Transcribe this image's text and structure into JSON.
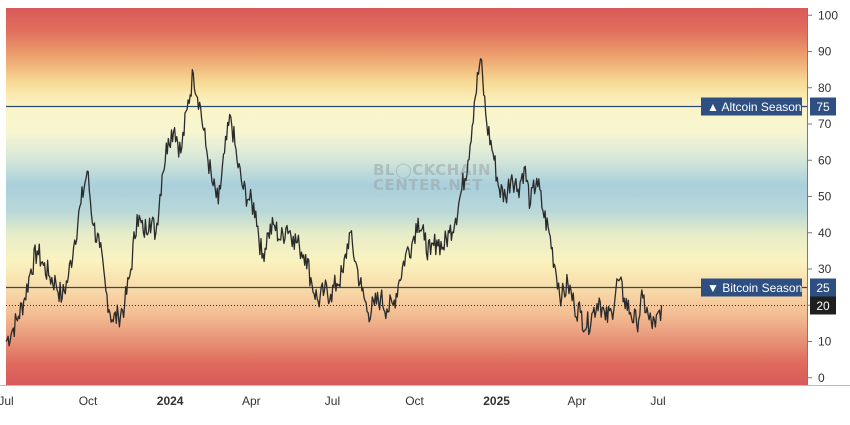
{
  "chart_data": {
    "type": "line",
    "title": "",
    "xlabel": "",
    "ylabel": "",
    "ylim": [
      -2,
      102
    ],
    "yticks": [
      0,
      10,
      20,
      30,
      40,
      50,
      60,
      70,
      80,
      90,
      100
    ],
    "x_ticks": [
      {
        "label": "Jul",
        "date": "2023-07-01",
        "bold": false
      },
      {
        "label": "Oct",
        "date": "2023-10-01",
        "bold": false
      },
      {
        "label": "2024",
        "date": "2024-01-01",
        "bold": true
      },
      {
        "label": "Apr",
        "date": "2024-04-01",
        "bold": false
      },
      {
        "label": "Jul",
        "date": "2024-07-01",
        "bold": false
      },
      {
        "label": "Oct",
        "date": "2024-10-01",
        "bold": false
      },
      {
        "label": "2025",
        "date": "2025-01-01",
        "bold": true
      },
      {
        "label": "Apr",
        "date": "2025-04-01",
        "bold": false
      },
      {
        "label": "Jul",
        "date": "2025-07-01",
        "bold": false
      }
    ],
    "x_range": [
      "2023-07-01",
      "2025-12-15"
    ],
    "thresholds": [
      {
        "label": "Altcoin Season",
        "value": 75,
        "value_label": "75",
        "marker": "▲"
      },
      {
        "label": "Bitcoin Season",
        "value": 25,
        "value_label": "25",
        "marker": "▼"
      }
    ],
    "last_value": {
      "value": 20,
      "label": "20"
    },
    "watermark": [
      "BL◯CKCHAIN",
      "CENTER.NET"
    ],
    "background_gradient": "red (0 and 100) → orange → yellow → light blue (~50)",
    "line_color": "#2b2b2b",
    "series": [
      {
        "values": [
          [
            "2023-07-01",
            10
          ],
          [
            "2023-07-08",
            13
          ],
          [
            "2023-07-15",
            17
          ],
          [
            "2023-07-22",
            22
          ],
          [
            "2023-07-29",
            30
          ],
          [
            "2023-08-05",
            35
          ],
          [
            "2023-08-12",
            31
          ],
          [
            "2023-08-19",
            28
          ],
          [
            "2023-08-26",
            26
          ],
          [
            "2023-09-02",
            22
          ],
          [
            "2023-09-09",
            28
          ],
          [
            "2023-09-16",
            38
          ],
          [
            "2023-09-23",
            48
          ],
          [
            "2023-09-30",
            57
          ],
          [
            "2023-10-07",
            42
          ],
          [
            "2023-10-14",
            36
          ],
          [
            "2023-10-21",
            24
          ],
          [
            "2023-10-28",
            16
          ],
          [
            "2023-11-04",
            17
          ],
          [
            "2023-11-11",
            20
          ],
          [
            "2023-11-18",
            30
          ],
          [
            "2023-11-25",
            45
          ],
          [
            "2023-12-02",
            40
          ],
          [
            "2023-12-09",
            44
          ],
          [
            "2023-12-16",
            40
          ],
          [
            "2023-12-23",
            56
          ],
          [
            "2023-12-30",
            66
          ],
          [
            "2024-01-06",
            69
          ],
          [
            "2024-01-13",
            62
          ],
          [
            "2024-01-20",
            74
          ],
          [
            "2024-01-27",
            84
          ],
          [
            "2024-02-03",
            76
          ],
          [
            "2024-02-10",
            64
          ],
          [
            "2024-02-17",
            54
          ],
          [
            "2024-02-24",
            48
          ],
          [
            "2024-03-02",
            62
          ],
          [
            "2024-03-09",
            72
          ],
          [
            "2024-03-16",
            60
          ],
          [
            "2024-03-23",
            52
          ],
          [
            "2024-03-30",
            49
          ],
          [
            "2024-04-06",
            46
          ],
          [
            "2024-04-13",
            33
          ],
          [
            "2024-04-20",
            40
          ],
          [
            "2024-04-27",
            42
          ],
          [
            "2024-05-04",
            38
          ],
          [
            "2024-05-11",
            42
          ],
          [
            "2024-05-18",
            39
          ],
          [
            "2024-05-25",
            36
          ],
          [
            "2024-06-01",
            34
          ],
          [
            "2024-06-08",
            26
          ],
          [
            "2024-06-15",
            21
          ],
          [
            "2024-06-22",
            24
          ],
          [
            "2024-06-29",
            23
          ],
          [
            "2024-07-06",
            26
          ],
          [
            "2024-07-13",
            29
          ],
          [
            "2024-07-20",
            40
          ],
          [
            "2024-07-27",
            32
          ],
          [
            "2024-08-03",
            24
          ],
          [
            "2024-08-10",
            18
          ],
          [
            "2024-08-17",
            20
          ],
          [
            "2024-08-24",
            22
          ],
          [
            "2024-08-31",
            19
          ],
          [
            "2024-09-07",
            20
          ],
          [
            "2024-09-14",
            27
          ],
          [
            "2024-09-21",
            34
          ],
          [
            "2024-09-28",
            37
          ],
          [
            "2024-10-05",
            44
          ],
          [
            "2024-10-12",
            38
          ],
          [
            "2024-10-19",
            34
          ],
          [
            "2024-10-26",
            38
          ],
          [
            "2024-11-02",
            36
          ],
          [
            "2024-11-09",
            40
          ],
          [
            "2024-11-16",
            44
          ],
          [
            "2024-11-23",
            52
          ],
          [
            "2024-11-30",
            60
          ],
          [
            "2024-12-07",
            76
          ],
          [
            "2024-12-14",
            88
          ],
          [
            "2024-12-21",
            70
          ],
          [
            "2024-12-28",
            62
          ],
          [
            "2025-01-04",
            52
          ],
          [
            "2025-01-11",
            50
          ],
          [
            "2025-01-18",
            56
          ],
          [
            "2025-01-25",
            52
          ],
          [
            "2025-02-01",
            58
          ],
          [
            "2025-02-08",
            48
          ],
          [
            "2025-02-15",
            55
          ],
          [
            "2025-02-22",
            46
          ],
          [
            "2025-03-01",
            40
          ],
          [
            "2025-03-08",
            30
          ],
          [
            "2025-03-15",
            22
          ],
          [
            "2025-03-22",
            26
          ],
          [
            "2025-03-29",
            20
          ],
          [
            "2025-04-05",
            18
          ],
          [
            "2025-04-12",
            14
          ],
          [
            "2025-04-19",
            18
          ],
          [
            "2025-04-26",
            22
          ],
          [
            "2025-05-03",
            16
          ],
          [
            "2025-05-10",
            18
          ],
          [
            "2025-05-17",
            27
          ],
          [
            "2025-05-24",
            22
          ],
          [
            "2025-05-31",
            18
          ],
          [
            "2025-06-07",
            15
          ],
          [
            "2025-06-14",
            22
          ],
          [
            "2025-06-21",
            16
          ],
          [
            "2025-06-28",
            14
          ],
          [
            "2025-07-05",
            20
          ]
        ]
      }
    ]
  }
}
